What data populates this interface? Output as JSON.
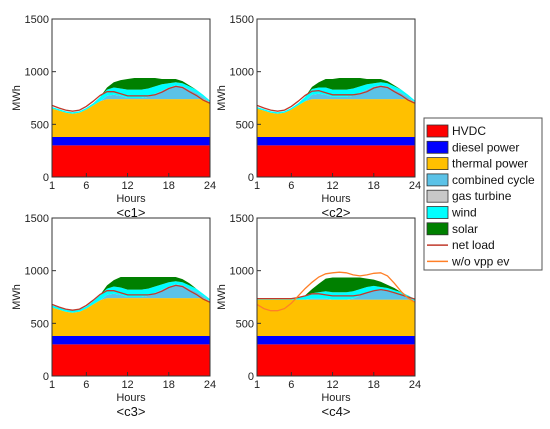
{
  "chart_data": {
    "type": "area",
    "stacked": true,
    "x": [
      1,
      2,
      3,
      4,
      5,
      6,
      7,
      8,
      9,
      10,
      11,
      12,
      13,
      14,
      15,
      16,
      17,
      18,
      19,
      20,
      21,
      22,
      23,
      24
    ],
    "xticks": [
      "1",
      "6",
      "12",
      "18",
      "24"
    ],
    "yticks": [
      "0",
      "500",
      "1000",
      "1500"
    ],
    "xlabel": "Hours",
    "ylabel": "MWh",
    "xlim": [
      1,
      24
    ],
    "ylim": [
      0,
      1500
    ],
    "grid": false,
    "legend": {
      "position": "right",
      "entries": [
        {
          "label": "HVDC",
          "color": "#ff0000",
          "kind": "patch"
        },
        {
          "label": "diesel power",
          "color": "#0000ff",
          "kind": "patch"
        },
        {
          "label": "thermal power",
          "color": "#ffc000",
          "kind": "patch"
        },
        {
          "label": "combined cycle",
          "color": "#5bc2e7",
          "kind": "patch"
        },
        {
          "label": "gas turbine",
          "color": "#c8c8c8",
          "kind": "patch"
        },
        {
          "label": "wind",
          "color": "#00ffff",
          "kind": "patch"
        },
        {
          "label": "solar",
          "color": "#008000",
          "kind": "patch"
        },
        {
          "label": "net load",
          "color": "#c0392b",
          "kind": "line"
        },
        {
          "label": "w/o vpp ev",
          "color": "#ff7f27",
          "kind": "line"
        }
      ]
    },
    "panels": [
      {
        "caption": "<c1>",
        "series": {
          "HVDC": [
            300,
            300,
            300,
            300,
            300,
            300,
            300,
            300,
            300,
            300,
            300,
            300,
            300,
            300,
            300,
            300,
            300,
            300,
            300,
            300,
            300,
            300,
            300,
            300
          ],
          "diesel power": [
            80,
            80,
            80,
            80,
            80,
            80,
            80,
            80,
            80,
            80,
            80,
            80,
            80,
            80,
            80,
            80,
            80,
            80,
            80,
            80,
            80,
            80,
            80,
            80
          ],
          "thermal power": [
            270,
            250,
            230,
            220,
            230,
            260,
            300,
            340,
            360,
            360,
            360,
            360,
            360,
            360,
            360,
            360,
            360,
            360,
            360,
            360,
            360,
            360,
            360,
            330
          ],
          "combined cycle": [
            0,
            0,
            0,
            0,
            0,
            0,
            0,
            0,
            30,
            40,
            30,
            10,
            10,
            10,
            20,
            50,
            80,
            110,
            130,
            120,
            90,
            60,
            20,
            0
          ],
          "gas turbine": [
            0,
            0,
            0,
            0,
            0,
            0,
            0,
            0,
            0,
            0,
            0,
            0,
            0,
            0,
            0,
            0,
            0,
            0,
            0,
            0,
            0,
            0,
            0,
            0
          ],
          "wind": [
            15,
            15,
            15,
            15,
            15,
            15,
            20,
            40,
            60,
            70,
            70,
            80,
            80,
            80,
            80,
            70,
            60,
            40,
            30,
            30,
            30,
            30,
            20,
            15
          ],
          "solar": [
            0,
            0,
            0,
            0,
            0,
            0,
            0,
            0,
            20,
            50,
            80,
            100,
            110,
            110,
            100,
            80,
            50,
            40,
            30,
            20,
            10,
            0,
            0,
            0
          ],
          "net load": [
            680,
            655,
            635,
            625,
            635,
            670,
            720,
            775,
            810,
            810,
            790,
            770,
            770,
            770,
            770,
            780,
            805,
            840,
            860,
            850,
            810,
            775,
            730,
            700
          ],
          "w/o vpp ev": []
        }
      },
      {
        "caption": "<c2>",
        "series": {
          "HVDC": [
            300,
            300,
            300,
            300,
            300,
            300,
            300,
            300,
            300,
            300,
            300,
            300,
            300,
            300,
            300,
            300,
            300,
            300,
            300,
            300,
            300,
            300,
            300,
            300
          ],
          "diesel power": [
            80,
            80,
            80,
            80,
            80,
            80,
            80,
            80,
            80,
            80,
            80,
            80,
            80,
            80,
            80,
            80,
            80,
            80,
            80,
            80,
            80,
            80,
            80,
            80
          ],
          "thermal power": [
            270,
            250,
            230,
            220,
            230,
            260,
            300,
            340,
            360,
            360,
            360,
            360,
            360,
            360,
            360,
            360,
            360,
            360,
            360,
            360,
            360,
            360,
            360,
            330
          ],
          "combined cycle": [
            0,
            0,
            0,
            0,
            0,
            0,
            0,
            0,
            40,
            50,
            40,
            20,
            20,
            20,
            30,
            60,
            90,
            120,
            130,
            120,
            90,
            60,
            20,
            0
          ],
          "gas turbine": [
            0,
            0,
            0,
            0,
            0,
            0,
            0,
            0,
            0,
            0,
            0,
            0,
            0,
            0,
            0,
            0,
            0,
            0,
            0,
            0,
            0,
            0,
            0,
            0
          ],
          "wind": [
            15,
            15,
            15,
            15,
            15,
            15,
            20,
            40,
            55,
            60,
            70,
            70,
            70,
            70,
            70,
            60,
            50,
            30,
            30,
            30,
            30,
            30,
            20,
            15
          ],
          "solar": [
            0,
            0,
            0,
            0,
            0,
            0,
            0,
            0,
            20,
            50,
            80,
            100,
            110,
            110,
            100,
            80,
            50,
            40,
            30,
            20,
            10,
            0,
            0,
            0
          ],
          "net load": [
            680,
            655,
            635,
            625,
            635,
            670,
            720,
            775,
            815,
            820,
            800,
            780,
            780,
            780,
            780,
            790,
            810,
            845,
            860,
            850,
            810,
            775,
            730,
            700
          ],
          "w/o vpp ev": []
        }
      },
      {
        "caption": "<c3>",
        "series": {
          "HVDC": [
            300,
            300,
            300,
            300,
            300,
            300,
            300,
            300,
            300,
            300,
            300,
            300,
            300,
            300,
            300,
            300,
            300,
            300,
            300,
            300,
            300,
            300,
            300,
            300
          ],
          "diesel power": [
            80,
            80,
            80,
            80,
            80,
            80,
            80,
            80,
            80,
            80,
            80,
            80,
            80,
            80,
            80,
            80,
            80,
            80,
            80,
            80,
            80,
            80,
            80,
            80
          ],
          "thermal power": [
            270,
            250,
            230,
            220,
            230,
            260,
            300,
            340,
            360,
            360,
            360,
            360,
            360,
            360,
            360,
            360,
            360,
            360,
            360,
            360,
            360,
            360,
            360,
            330
          ],
          "combined cycle": [
            0,
            0,
            0,
            0,
            0,
            0,
            0,
            0,
            30,
            40,
            30,
            10,
            10,
            10,
            20,
            50,
            80,
            110,
            130,
            120,
            90,
            60,
            20,
            0
          ],
          "gas turbine": [
            0,
            0,
            0,
            0,
            0,
            0,
            0,
            0,
            0,
            0,
            0,
            0,
            0,
            0,
            0,
            0,
            0,
            0,
            0,
            0,
            0,
            0,
            0,
            0
          ],
          "wind": [
            20,
            20,
            20,
            20,
            20,
            20,
            30,
            50,
            60,
            70,
            70,
            70,
            70,
            70,
            70,
            60,
            50,
            40,
            30,
            30,
            30,
            30,
            20,
            20
          ],
          "solar": [
            0,
            0,
            0,
            0,
            0,
            0,
            0,
            0,
            30,
            60,
            100,
            120,
            120,
            120,
            110,
            90,
            70,
            50,
            40,
            30,
            20,
            0,
            0,
            0
          ],
          "net load": [
            680,
            655,
            635,
            625,
            635,
            670,
            720,
            775,
            810,
            810,
            790,
            770,
            770,
            770,
            770,
            780,
            805,
            840,
            860,
            850,
            810,
            775,
            730,
            700
          ],
          "w/o vpp ev": []
        }
      },
      {
        "caption": "<c4>",
        "series": {
          "HVDC": [
            300,
            300,
            300,
            300,
            300,
            300,
            300,
            300,
            300,
            300,
            300,
            300,
            300,
            300,
            300,
            300,
            300,
            300,
            300,
            300,
            300,
            300,
            300,
            300
          ],
          "diesel power": [
            80,
            80,
            80,
            80,
            80,
            80,
            80,
            80,
            80,
            80,
            80,
            80,
            80,
            80,
            80,
            80,
            80,
            80,
            80,
            80,
            80,
            80,
            80,
            80
          ],
          "thermal power": [
            345,
            345,
            345,
            345,
            345,
            345,
            345,
            345,
            345,
            345,
            345,
            345,
            345,
            345,
            345,
            345,
            345,
            345,
            345,
            345,
            345,
            345,
            345,
            330
          ],
          "combined cycle": [
            0,
            0,
            0,
            0,
            0,
            0,
            0,
            0,
            10,
            10,
            10,
            0,
            0,
            0,
            10,
            40,
            70,
            90,
            90,
            80,
            60,
            40,
            20,
            0
          ],
          "gas turbine": [
            0,
            0,
            0,
            0,
            0,
            0,
            0,
            0,
            0,
            0,
            0,
            0,
            0,
            0,
            0,
            0,
            0,
            0,
            0,
            0,
            0,
            0,
            0,
            0
          ],
          "wind": [
            10,
            10,
            10,
            10,
            10,
            10,
            20,
            40,
            50,
            60,
            70,
            70,
            70,
            70,
            70,
            60,
            50,
            40,
            30,
            30,
            30,
            30,
            20,
            20
          ],
          "solar": [
            0,
            0,
            0,
            0,
            0,
            0,
            0,
            0,
            40,
            80,
            120,
            140,
            140,
            140,
            130,
            110,
            80,
            60,
            50,
            30,
            20,
            0,
            0,
            0
          ],
          "net load": [
            735,
            735,
            735,
            735,
            735,
            735,
            745,
            760,
            780,
            780,
            770,
            760,
            760,
            760,
            760,
            770,
            790,
            810,
            820,
            810,
            790,
            770,
            750,
            730
          ],
          "w/o vpp ev": [
            680,
            640,
            620,
            620,
            640,
            690,
            760,
            830,
            890,
            940,
            970,
            980,
            985,
            980,
            960,
            950,
            960,
            975,
            980,
            950,
            880,
            800,
            740,
            700
          ]
        }
      }
    ]
  }
}
